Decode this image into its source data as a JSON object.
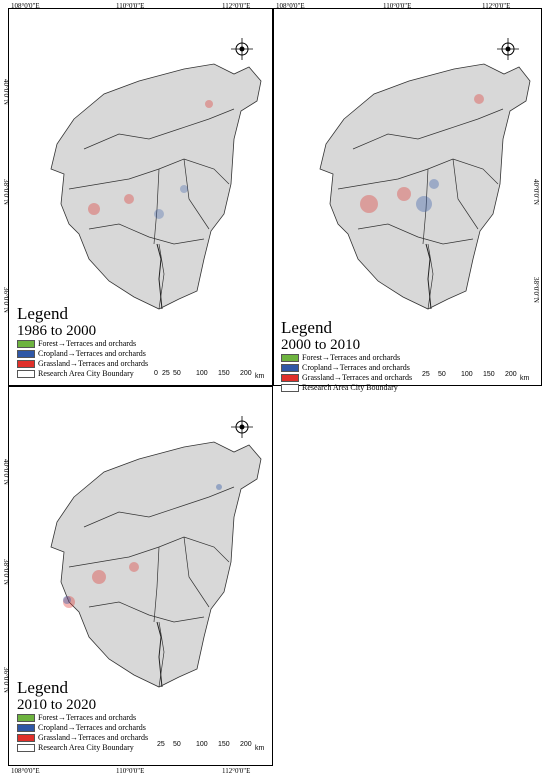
{
  "ticks": {
    "lon": [
      "108°0'0\"E",
      "110°0'0\"E",
      "112°0'0\"E"
    ],
    "lat": [
      "40°0'0\"N",
      "38°0'0\"N",
      "36°0'0\"N"
    ]
  },
  "legend": {
    "title": "Legend",
    "items": [
      {
        "label": "Forest→Terraces and orchards",
        "color": "#6db33f"
      },
      {
        "label": "Cropland→Terraces and orchards",
        "color": "#2f57a6"
      },
      {
        "label": "Grassland→Terraces and orchards",
        "color": "#e0302a"
      },
      {
        "label": "Research Area City Boundary",
        "color": "#ffffff"
      }
    ]
  },
  "scale": {
    "labels": [
      "0",
      "25",
      "50",
      "100",
      "150",
      "200"
    ],
    "unit": "km"
  },
  "panels": [
    {
      "period": "1986 to 2000"
    },
    {
      "period": "2000 to 2010"
    },
    {
      "period": "2010 to 2020"
    }
  ],
  "colors": {
    "region_fill": "#d8d8d8",
    "boundary": "#333333",
    "river": "#222222"
  }
}
